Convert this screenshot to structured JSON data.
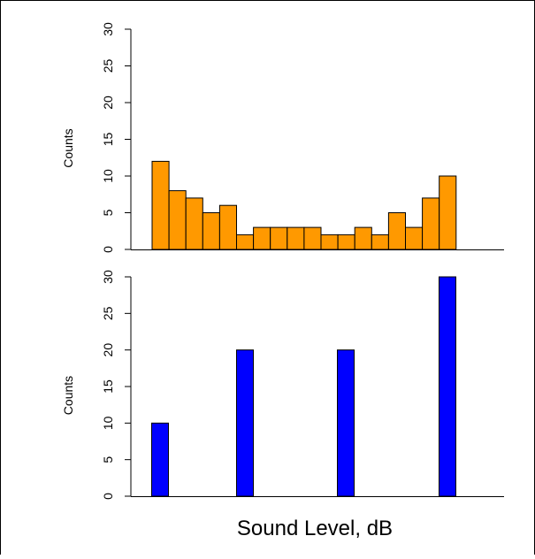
{
  "chart_data": [
    {
      "type": "bar",
      "title": "",
      "xlabel": "",
      "ylabel": "Counts",
      "ylim": [
        0,
        30
      ],
      "yticks": [
        0,
        5,
        10,
        15,
        20,
        25,
        30
      ],
      "color": "#FF9900",
      "values": [
        12,
        8,
        7,
        5,
        6,
        2,
        3,
        3,
        3,
        3,
        2,
        2,
        3,
        2,
        5,
        3,
        7,
        10
      ],
      "grid": false
    },
    {
      "type": "bar",
      "title": "",
      "xlabel": "Sound Level, dB",
      "ylabel": "Counts",
      "ylim": [
        0,
        30
      ],
      "yticks": [
        0,
        5,
        10,
        15,
        20,
        25,
        30
      ],
      "color": "#0000FF",
      "values": [
        10,
        20,
        20,
        30
      ],
      "grid": false
    }
  ]
}
